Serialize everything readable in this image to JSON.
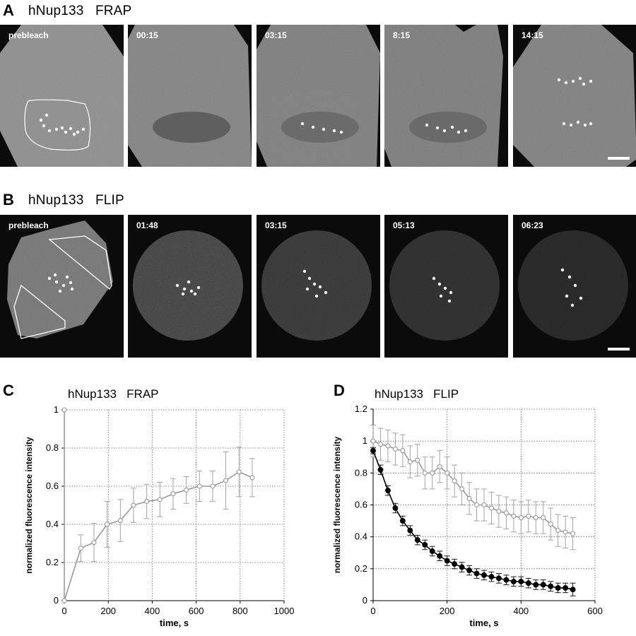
{
  "panelA": {
    "letter": "A",
    "title": "hNup133   FRAP",
    "frames": [
      {
        "label": "prebleach",
        "kind": "frapPre"
      },
      {
        "label": "00:15",
        "kind": "frap1"
      },
      {
        "label": "03:15",
        "kind": "frap2"
      },
      {
        "label": "8:15",
        "kind": "frap3"
      },
      {
        "label": "14:15",
        "kind": "frap4"
      }
    ]
  },
  "panelB": {
    "letter": "B",
    "title": "hNup133   FLIP",
    "frames": [
      {
        "label": "prebleach",
        "kind": "flipPre"
      },
      {
        "label": "01:48",
        "kind": "flip1"
      },
      {
        "label": "03:15",
        "kind": "flip2"
      },
      {
        "label": "05:13",
        "kind": "flip3"
      },
      {
        "label": "06:23",
        "kind": "flip4"
      }
    ]
  },
  "chart_data": [
    {
      "panel": "C",
      "type": "line",
      "title": "hNup133   FRAP",
      "xlabel": "time, s",
      "ylabel": "normalized fluorescence intensity",
      "xlim": [
        0,
        1000
      ],
      "ylim": [
        0,
        1
      ],
      "xticks": [
        0,
        200,
        400,
        600,
        800,
        1000
      ],
      "yticks": [
        0,
        0.2,
        0.4,
        0.6,
        0.8,
        1
      ],
      "grid": true,
      "series": [
        {
          "color": "#999999",
          "marker": "open-circle",
          "x": [
            0,
            0,
            75,
            135,
            195,
            255,
            315,
            375,
            435,
            495,
            555,
            615,
            675,
            735,
            795,
            855
          ],
          "y": [
            1.0,
            0.0,
            0.275,
            0.305,
            0.4,
            0.42,
            0.5,
            0.52,
            0.53,
            0.56,
            0.58,
            0.6,
            0.6,
            0.63,
            0.675,
            0.645
          ],
          "err": [
            0,
            0,
            0.07,
            0.1,
            0.12,
            0.11,
            0.09,
            0.09,
            0.09,
            0.08,
            0.07,
            0.08,
            0.08,
            0.15,
            0.13,
            0.1
          ]
        }
      ]
    },
    {
      "panel": "D",
      "type": "line",
      "title": "hNup133   FLIP",
      "xlabel": "time, s",
      "ylabel": "normalized fluorescence intensity",
      "xlim": [
        0,
        600
      ],
      "ylim": [
        0,
        1.2
      ],
      "xticks": [
        0,
        200,
        400,
        600
      ],
      "yticks": [
        0,
        0.2,
        0.4,
        0.6,
        0.8,
        1,
        1.2
      ],
      "grid": true,
      "series": [
        {
          "color": "#999999",
          "marker": "open-circle",
          "x": [
            0,
            20,
            40,
            60,
            80,
            100,
            120,
            140,
            160,
            180,
            200,
            220,
            240,
            260,
            280,
            300,
            320,
            340,
            360,
            380,
            400,
            420,
            440,
            460,
            480,
            500,
            520,
            540
          ],
          "y": [
            1.0,
            0.98,
            0.97,
            0.95,
            0.94,
            0.87,
            0.88,
            0.8,
            0.8,
            0.84,
            0.8,
            0.75,
            0.7,
            0.64,
            0.6,
            0.6,
            0.58,
            0.56,
            0.55,
            0.53,
            0.52,
            0.53,
            0.52,
            0.52,
            0.48,
            0.44,
            0.43,
            0.42
          ],
          "err": [
            0.1,
            0.1,
            0.1,
            0.1,
            0.1,
            0.1,
            0.1,
            0.1,
            0.1,
            0.1,
            0.1,
            0.1,
            0.1,
            0.1,
            0.1,
            0.1,
            0.1,
            0.1,
            0.1,
            0.1,
            0.1,
            0.1,
            0.1,
            0.1,
            0.1,
            0.1,
            0.1,
            0.1
          ]
        },
        {
          "color": "#000000",
          "marker": "filled-circle",
          "x": [
            0,
            20,
            40,
            60,
            80,
            100,
            120,
            140,
            160,
            180,
            200,
            220,
            240,
            260,
            280,
            300,
            320,
            340,
            360,
            380,
            400,
            420,
            440,
            460,
            480,
            500,
            520,
            540
          ],
          "y": [
            0.94,
            0.82,
            0.69,
            0.58,
            0.5,
            0.44,
            0.38,
            0.35,
            0.31,
            0.28,
            0.25,
            0.23,
            0.21,
            0.19,
            0.17,
            0.16,
            0.15,
            0.14,
            0.13,
            0.12,
            0.12,
            0.11,
            0.1,
            0.1,
            0.09,
            0.08,
            0.08,
            0.07
          ],
          "err": [
            0.02,
            0.03,
            0.03,
            0.03,
            0.03,
            0.03,
            0.03,
            0.03,
            0.03,
            0.03,
            0.03,
            0.03,
            0.03,
            0.03,
            0.03,
            0.03,
            0.03,
            0.03,
            0.03,
            0.03,
            0.03,
            0.03,
            0.03,
            0.03,
            0.03,
            0.03,
            0.03,
            0.04
          ]
        }
      ]
    }
  ]
}
